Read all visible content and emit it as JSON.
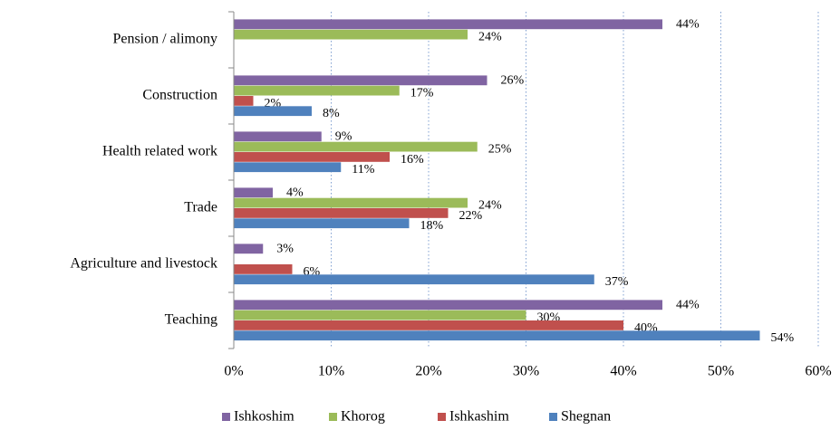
{
  "chart_data": {
    "type": "hbar",
    "categories": [
      "Pension / alimony",
      "Construction",
      "Health related work",
      "Trade",
      "Agriculture and livestock",
      "Teaching"
    ],
    "series": [
      {
        "name": "Ishkoshim",
        "color": "#8064a2",
        "values": [
          44,
          26,
          9,
          4,
          3,
          44
        ],
        "value_labels": [
          "44%",
          "26%",
          "9%",
          "4%",
          "3%",
          "44%"
        ]
      },
      {
        "name": "Khorog",
        "color": "#9bbb59",
        "values": [
          24,
          17,
          25,
          24,
          null,
          30
        ],
        "value_labels": [
          "24%",
          "17%",
          "25%",
          "24%",
          null,
          "30%"
        ]
      },
      {
        "name": "Ishkashim",
        "color": "#c0504d",
        "values": [
          null,
          2,
          16,
          22,
          6,
          40
        ],
        "value_labels": [
          null,
          "2%",
          "16%",
          "22%",
          "6%",
          "40%"
        ]
      },
      {
        "name": "Shegnan",
        "color": "#4f81bd",
        "values": [
          null,
          8,
          11,
          18,
          37,
          54
        ],
        "value_labels": [
          null,
          "8%",
          "11%",
          "18%",
          "37%",
          "54%"
        ]
      }
    ],
    "xlim": [
      0,
      60
    ],
    "xticks": [
      {
        "value": 0,
        "label": "0%"
      },
      {
        "value": 10,
        "label": "10%"
      },
      {
        "value": 20,
        "label": "20%"
      },
      {
        "value": 30,
        "label": "30%"
      },
      {
        "value": 40,
        "label": "40%"
      },
      {
        "value": 50,
        "label": "50%"
      },
      {
        "value": 60,
        "label": "60%"
      }
    ],
    "grid": true,
    "legend": "bottom"
  }
}
